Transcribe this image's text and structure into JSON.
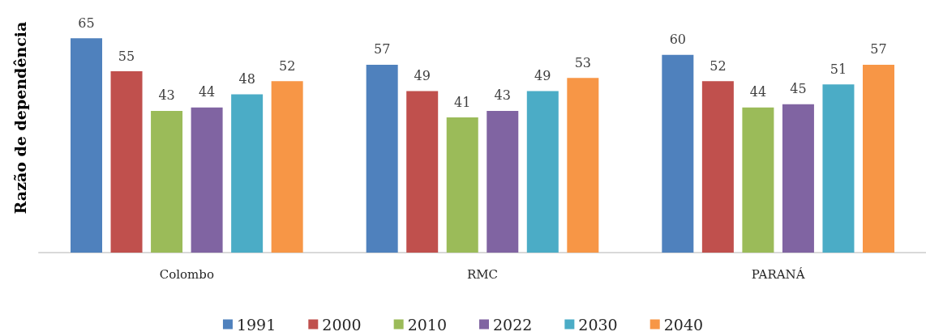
{
  "chart_data": {
    "type": "bar",
    "ylabel": "Razão de dependência",
    "categories": [
      "Colombo",
      "RMC",
      "PARANÁ"
    ],
    "series": [
      {
        "name": "1991",
        "color": "#4f81bd",
        "values": [
          65,
          57,
          60
        ]
      },
      {
        "name": "2000",
        "color": "#c0504d",
        "values": [
          55,
          49,
          52
        ]
      },
      {
        "name": "2010",
        "color": "#9bbb59",
        "values": [
          43,
          41,
          44
        ]
      },
      {
        "name": "2022",
        "color": "#8064a2",
        "values": [
          44,
          43,
          45
        ]
      },
      {
        "name": "2030",
        "color": "#4bacc6",
        "values": [
          48,
          49,
          51
        ]
      },
      {
        "name": "2040",
        "color": "#f79646",
        "values": [
          52,
          53,
          57
        ]
      }
    ],
    "data_labels": true,
    "legend": "bottom",
    "grid": false,
    "tick_labels": "x"
  }
}
